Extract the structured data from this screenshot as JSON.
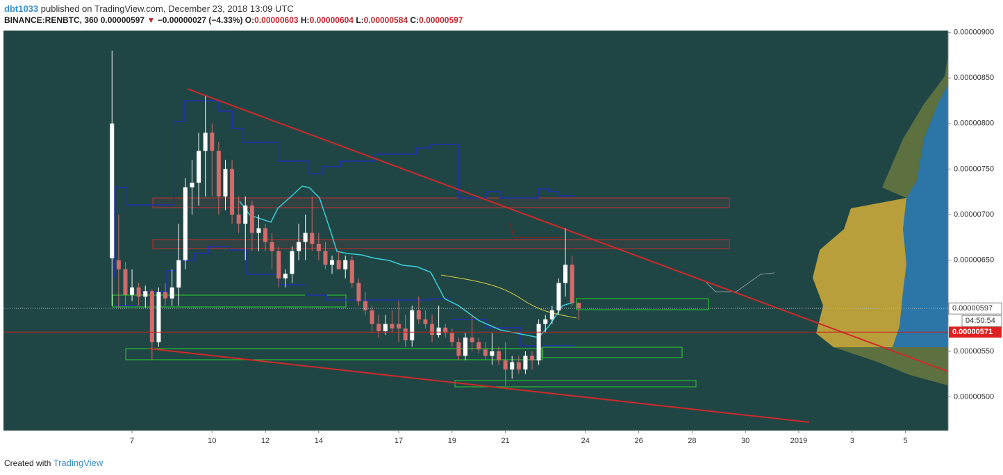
{
  "header": {
    "author": "dbt1033",
    "published": "published on TradingView.com, December 23, 2018 13:09 UTC",
    "symbol": "BINANCE:RENBTC, 360",
    "last": "0.00000597",
    "arrow": "▼",
    "change": "−0.00000027 (−4.33%)",
    "o_label": "O:",
    "o": "0.00000603",
    "h_label": "H:",
    "h": "0.00000604",
    "l_label": "L:",
    "l": "0.00000584",
    "c_label": "C:",
    "c": "0.00000597"
  },
  "footer": {
    "created": "Created with",
    "brand": "TradingView"
  },
  "chart_data": {
    "type": "candlestick",
    "up_color": "#ffffff",
    "down_color": "#d46a6a",
    "x": [
      6.25,
      6.5,
      6.75,
      7,
      7.25,
      7.5,
      7.75,
      8,
      8.25,
      8.5,
      8.75,
      9,
      9.25,
      9.5,
      9.75,
      10,
      10.25,
      10.5,
      10.75,
      11,
      11.25,
      11.5,
      11.75,
      12,
      12.25,
      12.5,
      12.75,
      13,
      13.25,
      13.5,
      13.75,
      14,
      14.25,
      14.5,
      14.75,
      15,
      15.25,
      15.5,
      15.75,
      16,
      16.25,
      16.5,
      16.75,
      17,
      17.25,
      17.5,
      17.75,
      18,
      18.25,
      18.5,
      18.75,
      19,
      19.25,
      19.5,
      19.75,
      20,
      20.25,
      20.5,
      20.75,
      21,
      21.25,
      21.5,
      21.75,
      22,
      22.25,
      22.5,
      22.75,
      23,
      23.25,
      23.5,
      23.75
    ],
    "open": [
      6.52e-06,
      6.5e-06,
      6.4e-06,
      6.12e-06,
      6.2e-06,
      6.1e-06,
      6.16e-06,
      5.6e-06,
      6.15e-06,
      6.08e-06,
      6.2e-06,
      6.5e-06,
      7.3e-06,
      7.35e-06,
      7.7e-06,
      7.9e-06,
      7.7e-06,
      7.2e-06,
      7.5e-06,
      7e-06,
      6.9e-06,
      7.1e-06,
      6.8e-06,
      6.85e-06,
      6.7e-06,
      6.6e-06,
      6.3e-06,
      6.35e-06,
      6.6e-06,
      6.7e-06,
      6.8e-06,
      6.68e-06,
      6.6e-06,
      6.45e-06,
      6.5e-06,
      6.4e-06,
      6.5e-06,
      6.25e-06,
      6.05e-06,
      5.95e-06,
      5.8e-06,
      5.72e-06,
      5.8e-06,
      5.8e-06,
      5.75e-06,
      5.62e-06,
      5.95e-06,
      5.85e-06,
      5.8e-06,
      5.68e-06,
      5.76e-06,
      5.7e-06,
      5.6e-06,
      5.45e-06,
      5.65e-06,
      5.6e-06,
      5.52e-06,
      5.45e-06,
      5.5e-06,
      5.4e-06,
      5.3e-06,
      5.38e-06,
      5.3e-06,
      5.45e-06,
      5.4e-06,
      5.8e-06,
      5.85e-06,
      5.95e-06,
      6.25e-06,
      6.45e-06,
      6.03e-06
    ],
    "high": [
      8.8e-06,
      7e-06,
      6.48e-06,
      6.4e-06,
      6.25e-06,
      6.22e-06,
      6.18e-06,
      6.2e-06,
      6.25e-06,
      6.4e-06,
      6.9e-06,
      7.4e-06,
      7.6e-06,
      7.9e-06,
      8.3e-06,
      8e-06,
      7.8e-06,
      7.6e-06,
      7.6e-06,
      7.2e-06,
      7.2e-06,
      7.15e-06,
      7e-06,
      6.9e-06,
      6.8e-06,
      6.65e-06,
      6.4e-06,
      6.65e-06,
      6.9e-06,
      7e-06,
      7.2e-06,
      6.8e-06,
      6.7e-06,
      6.55e-06,
      6.6e-06,
      6.55e-06,
      6.55e-06,
      6.3e-06,
      6.15e-06,
      6e-06,
      5.9e-06,
      5.9e-06,
      5.95e-06,
      6.05e-06,
      5.9e-06,
      6e-06,
      6.1e-06,
      5.95e-06,
      5.9e-06,
      6e-06,
      5.8e-06,
      5.75e-06,
      5.65e-06,
      5.7e-06,
      5.9e-06,
      5.65e-06,
      5.6e-06,
      5.7e-06,
      5.55e-06,
      5.6e-06,
      5.45e-06,
      5.45e-06,
      5.5e-06,
      5.5e-06,
      5.85e-06,
      5.9e-06,
      6e-06,
      6.3e-06,
      6.85e-06,
      6.55e-06,
      6.04e-06
    ],
    "low": [
      6e-06,
      5.98e-06,
      6e-06,
      6.05e-06,
      6e-06,
      5.98e-06,
      5.4e-06,
      5.55e-06,
      6e-06,
      6e-06,
      6e-06,
      6.4e-06,
      7e-06,
      7.1e-06,
      7.2e-06,
      7.2e-06,
      7e-06,
      7.05e-06,
      6.9e-06,
      6.8e-06,
      6.5e-06,
      6.6e-06,
      6.6e-06,
      6.6e-06,
      6.4e-06,
      6.2e-06,
      6.2e-06,
      6.25e-06,
      6.5e-06,
      6.5e-06,
      6.6e-06,
      6.5e-06,
      6.4e-06,
      6.35e-06,
      6.4e-06,
      6.3e-06,
      6.2e-06,
      6e-06,
      5.9e-06,
      5.7e-06,
      5.65e-06,
      5.68e-06,
      5.7e-06,
      5.6e-06,
      5.55e-06,
      5.55e-06,
      5.8e-06,
      5.75e-06,
      5.6e-06,
      5.65e-06,
      5.65e-06,
      5.55e-06,
      5.4e-06,
      5.4e-06,
      5.5e-06,
      5.48e-06,
      5.4e-06,
      5.35e-06,
      5.35e-06,
      5.12e-06,
      5.2e-06,
      5.25e-06,
      5.25e-06,
      5.3e-06,
      5.35e-06,
      5.7e-06,
      5.8e-06,
      5.9e-06,
      6.1e-06,
      6e-06,
      5.84e-06
    ],
    "close": [
      8e-06,
      6.4e-06,
      6.12e-06,
      6.2e-06,
      6.1e-06,
      6.16e-06,
      5.6e-06,
      6.15e-06,
      6.08e-06,
      6.2e-06,
      6.5e-06,
      7.3e-06,
      7.35e-06,
      7.7e-06,
      7.9e-06,
      7.7e-06,
      7.2e-06,
      7.5e-06,
      7e-06,
      6.9e-06,
      7.1e-06,
      6.8e-06,
      6.85e-06,
      6.7e-06,
      6.6e-06,
      6.3e-06,
      6.35e-06,
      6.6e-06,
      6.7e-06,
      6.8e-06,
      6.68e-06,
      6.6e-06,
      6.45e-06,
      6.5e-06,
      6.4e-06,
      6.5e-06,
      6.25e-06,
      6.05e-06,
      5.95e-06,
      5.8e-06,
      5.72e-06,
      5.8e-06,
      5.75e-06,
      5.75e-06,
      5.62e-06,
      5.95e-06,
      5.85e-06,
      5.8e-06,
      5.68e-06,
      5.76e-06,
      5.7e-06,
      5.6e-06,
      5.45e-06,
      5.65e-06,
      5.6e-06,
      5.52e-06,
      5.45e-06,
      5.5e-06,
      5.4e-06,
      5.3e-06,
      5.38e-06,
      5.3e-06,
      5.45e-06,
      5.4e-06,
      5.8e-06,
      5.85e-06,
      5.95e-06,
      6.25e-06,
      6.45e-06,
      6.03e-06,
      5.97e-06
    ],
    "xlim": [
      2.18,
      37.6
    ],
    "xticks": [
      7,
      10,
      12,
      14,
      17,
      19,
      21,
      24,
      26,
      28,
      30,
      {
        "value": 32,
        "label": "2019"
      },
      {
        "value": 34,
        "label": "3"
      },
      {
        "value": 36,
        "label": "5"
      }
    ],
    "ylim": [
      4.63e-06,
      9.02e-06
    ],
    "yticks": [
      {
        "value": 5e-06,
        "label": "0.00000500"
      },
      {
        "value": 5.5e-06,
        "label": "0.00000550"
      },
      {
        "value": 6e-06,
        "label": "0.00000600"
      },
      {
        "value": 6.5e-06,
        "label": "0.00000650"
      },
      {
        "value": 7e-06,
        "label": "0.00000700"
      },
      {
        "value": 7.5e-06,
        "label": "0.00000750"
      },
      {
        "value": 8e-06,
        "label": "0.00000800"
      },
      {
        "value": 8.5e-06,
        "label": "0.00000850"
      },
      {
        "value": 9e-06,
        "label": "0.00000900"
      }
    ],
    "last_price": {
      "value": 5.97e-06,
      "label": "0.00000597"
    },
    "countdown": "04:50:54",
    "level": {
      "value": 5.71e-06,
      "label": "0.00000571"
    }
  }
}
